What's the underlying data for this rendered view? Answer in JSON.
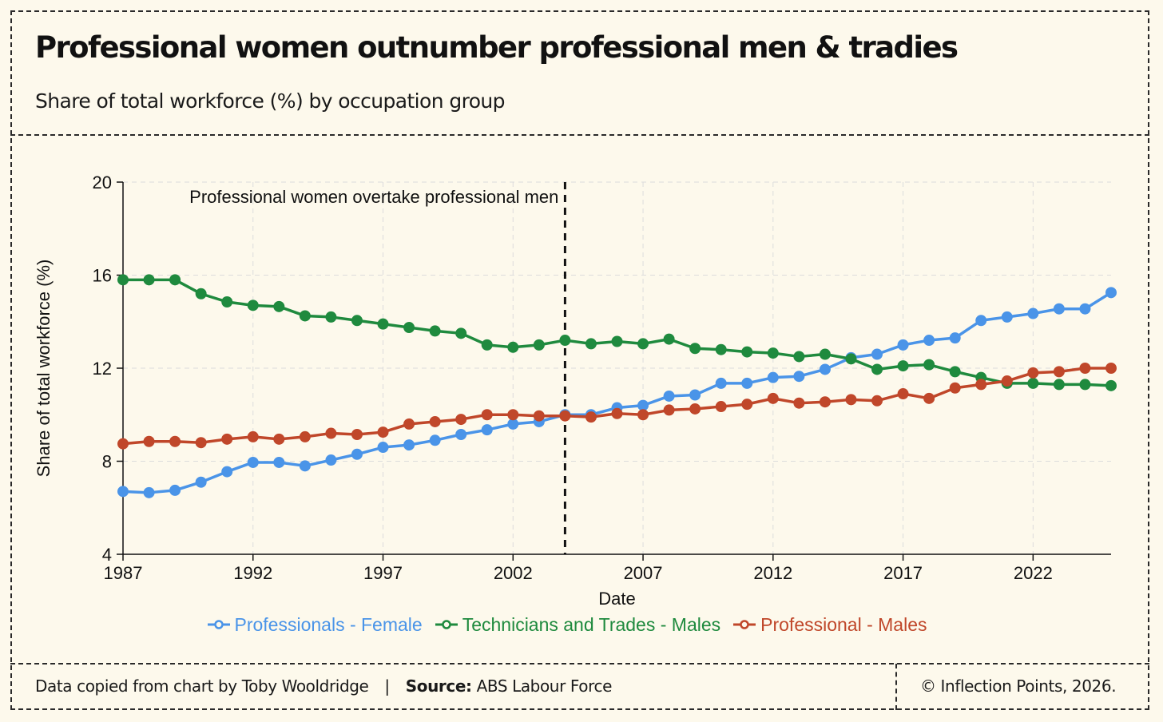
{
  "header": {
    "title": "Professional women outnumber professional men & tradies",
    "subtitle": "Share of total workforce (%) by occupation group"
  },
  "footer": {
    "credit": "Data copied from chart by Toby Wooldridge",
    "separator": "|",
    "source_label": "Source:",
    "source_value": "ABS Labour Force",
    "copyright": "© Inflection Points, 2026."
  },
  "colors": {
    "female": "#4a94e8",
    "trades": "#1f8a3e",
    "males": "#c0472a"
  },
  "chart_data": {
    "type": "line",
    "title": "",
    "xlabel": "Date",
    "ylabel": "Share of total workforce (%)",
    "xlim": [
      1987,
      2025
    ],
    "ylim": [
      4,
      20
    ],
    "xticks": [
      1987,
      1992,
      1997,
      2002,
      2007,
      2012,
      2017,
      2022
    ],
    "yticks": [
      4,
      8,
      12,
      16,
      20
    ],
    "grid": true,
    "legend_position": "bottom",
    "annotation": {
      "text": "Professional women overtake professional men",
      "x": 2004
    },
    "x": [
      1987,
      1988,
      1989,
      1990,
      1991,
      1992,
      1993,
      1994,
      1995,
      1996,
      1997,
      1998,
      1999,
      2000,
      2001,
      2002,
      2003,
      2004,
      2005,
      2006,
      2007,
      2008,
      2009,
      2010,
      2011,
      2012,
      2013,
      2014,
      2015,
      2016,
      2017,
      2018,
      2019,
      2020,
      2021,
      2022,
      2023,
      2024,
      2025
    ],
    "series": [
      {
        "name": "Professionals - Female",
        "color": "#4a94e8",
        "values": [
          6.7,
          6.65,
          6.75,
          7.1,
          7.55,
          7.95,
          7.95,
          7.8,
          8.05,
          8.3,
          8.6,
          8.7,
          8.9,
          9.15,
          9.35,
          9.6,
          9.7,
          10.0,
          10.0,
          10.3,
          10.4,
          10.8,
          10.85,
          11.35,
          11.35,
          11.6,
          11.65,
          11.95,
          12.45,
          12.6,
          13.0,
          13.2,
          13.3,
          14.05,
          14.2,
          14.35,
          14.55,
          14.55,
          15.25
        ]
      },
      {
        "name": "Technicians and Trades - Males",
        "color": "#1f8a3e",
        "values": [
          15.8,
          15.8,
          15.8,
          15.2,
          14.85,
          14.7,
          14.65,
          14.25,
          14.2,
          14.05,
          13.9,
          13.75,
          13.6,
          13.5,
          13.0,
          12.9,
          13.0,
          13.2,
          13.05,
          13.15,
          13.05,
          13.25,
          12.85,
          12.8,
          12.7,
          12.65,
          12.5,
          12.6,
          12.4,
          11.95,
          12.1,
          12.15,
          11.85,
          11.6,
          11.35,
          11.35,
          11.3,
          11.3,
          11.25
        ]
      },
      {
        "name": "Professional - Males",
        "color": "#c0472a",
        "values": [
          8.75,
          8.85,
          8.85,
          8.8,
          8.95,
          9.05,
          8.95,
          9.05,
          9.2,
          9.15,
          9.25,
          9.6,
          9.7,
          9.8,
          10.0,
          10.0,
          9.95,
          9.95,
          9.9,
          10.05,
          10.0,
          10.2,
          10.25,
          10.35,
          10.45,
          10.7,
          10.5,
          10.55,
          10.65,
          10.6,
          10.9,
          10.7,
          11.15,
          11.3,
          11.45,
          11.8,
          11.85,
          12.0,
          12.0
        ]
      }
    ]
  }
}
